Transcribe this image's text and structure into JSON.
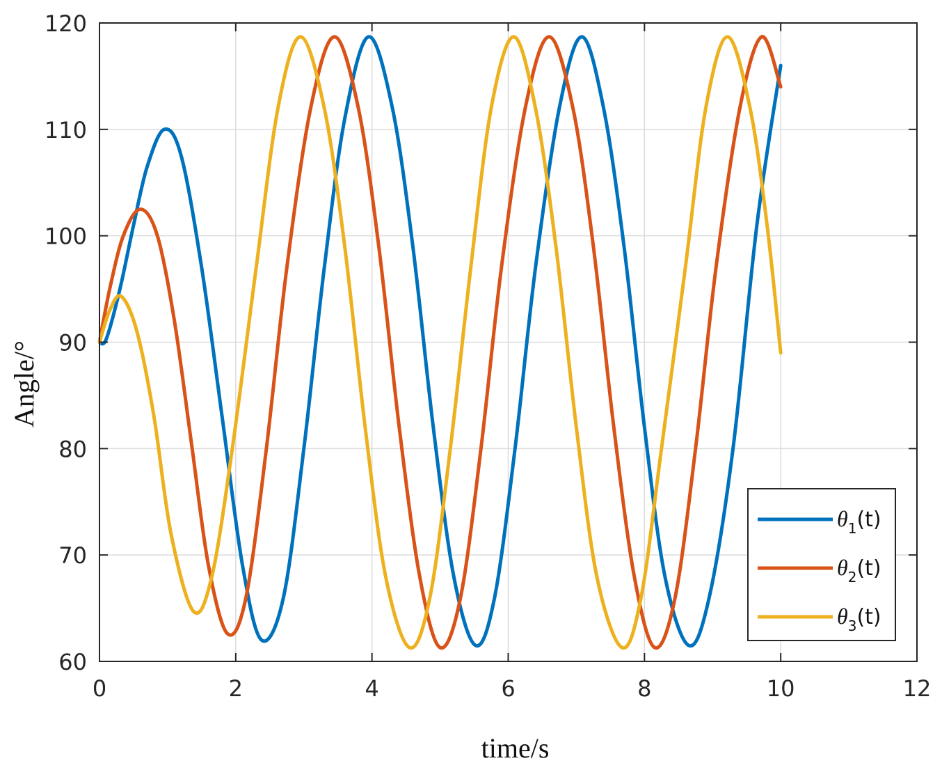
{
  "chart_data": {
    "type": "line",
    "xlabel": "time/s",
    "ylabel": "Angle/°",
    "xlim": [
      0,
      12
    ],
    "ylim": [
      60,
      120
    ],
    "x_ticks": [
      "0",
      "2",
      "4",
      "6",
      "8",
      "10",
      "12"
    ],
    "y_ticks": [
      "60",
      "70",
      "80",
      "90",
      "100",
      "110",
      "120"
    ],
    "grid": true,
    "legend_position": "bottom-right",
    "series": [
      {
        "name": "θ1(t)",
        "name_base": "θ",
        "name_sub": "1",
        "name_suffix": "(t)",
        "color": "#0072BD",
        "x": [
          0,
          0.1,
          0.3,
          0.5,
          0.7,
          0.95,
          1.2,
          1.5,
          1.8,
          2.1,
          2.38,
          2.7,
          3.0,
          3.3,
          3.6,
          3.95,
          4.3,
          4.6,
          4.9,
          5.2,
          5.52,
          5.8,
          6.1,
          6.4,
          6.75,
          7.08,
          7.4,
          7.7,
          8.0,
          8.3,
          8.65,
          8.95,
          9.3,
          9.65,
          10.0
        ],
        "y": [
          90.0,
          90.3,
          95.0,
          101.0,
          106.5,
          110.0,
          107.5,
          97.0,
          83.0,
          69.0,
          62.0,
          66.0,
          80.0,
          97.0,
          111.0,
          118.7,
          112.0,
          99.0,
          82.0,
          68.0,
          61.5,
          66.0,
          80.0,
          97.0,
          112.0,
          118.7,
          112.0,
          99.0,
          82.0,
          68.0,
          61.5,
          66.0,
          80.0,
          101.0,
          116.0
        ]
      },
      {
        "name": "θ2(t)",
        "name_base": "θ",
        "name_sub": "2",
        "name_suffix": "(t)",
        "color": "#D95319",
        "x": [
          0,
          0.15,
          0.35,
          0.6,
          0.85,
          1.1,
          1.35,
          1.6,
          1.88,
          2.15,
          2.45,
          2.75,
          3.1,
          3.45,
          3.8,
          4.1,
          4.4,
          4.7,
          5.0,
          5.3,
          5.6,
          5.9,
          6.25,
          6.6,
          6.95,
          7.25,
          7.55,
          7.85,
          8.15,
          8.45,
          8.75,
          9.05,
          9.4,
          9.72,
          10.0
        ],
        "y": [
          90.0,
          95.0,
          100.0,
          102.5,
          100.0,
          92.0,
          80.5,
          69.0,
          62.6,
          66.0,
          80.0,
          97.0,
          112.0,
          118.7,
          112.0,
          99.0,
          82.0,
          68.0,
          61.3,
          66.0,
          80.0,
          97.0,
          112.0,
          118.7,
          112.0,
          99.0,
          82.0,
          68.0,
          61.3,
          66.0,
          80.0,
          97.0,
          112.0,
          118.7,
          114.0
        ]
      },
      {
        "name": "θ3(t)",
        "name_base": "θ",
        "name_sub": "3",
        "name_suffix": "(t)",
        "color": "#EDB120",
        "x": [
          0,
          0.15,
          0.32,
          0.55,
          0.8,
          1.05,
          1.38,
          1.65,
          1.95,
          2.3,
          2.62,
          2.95,
          3.3,
          3.6,
          3.9,
          4.2,
          4.55,
          4.85,
          5.15,
          5.45,
          5.75,
          6.08,
          6.4,
          6.7,
          7.0,
          7.3,
          7.67,
          7.95,
          8.25,
          8.6,
          8.9,
          9.22,
          9.55,
          9.8,
          10.0
        ],
        "y": [
          90.0,
          93.0,
          94.3,
          91.0,
          83.0,
          72.0,
          64.7,
          68.0,
          80.0,
          97.0,
          112.0,
          118.7,
          112.0,
          99.0,
          82.0,
          68.0,
          61.3,
          66.0,
          80.0,
          97.0,
          112.0,
          118.7,
          112.0,
          99.0,
          82.0,
          68.0,
          61.3,
          66.0,
          80.0,
          97.0,
          112.0,
          118.7,
          112.0,
          101.0,
          89.0
        ]
      }
    ]
  }
}
